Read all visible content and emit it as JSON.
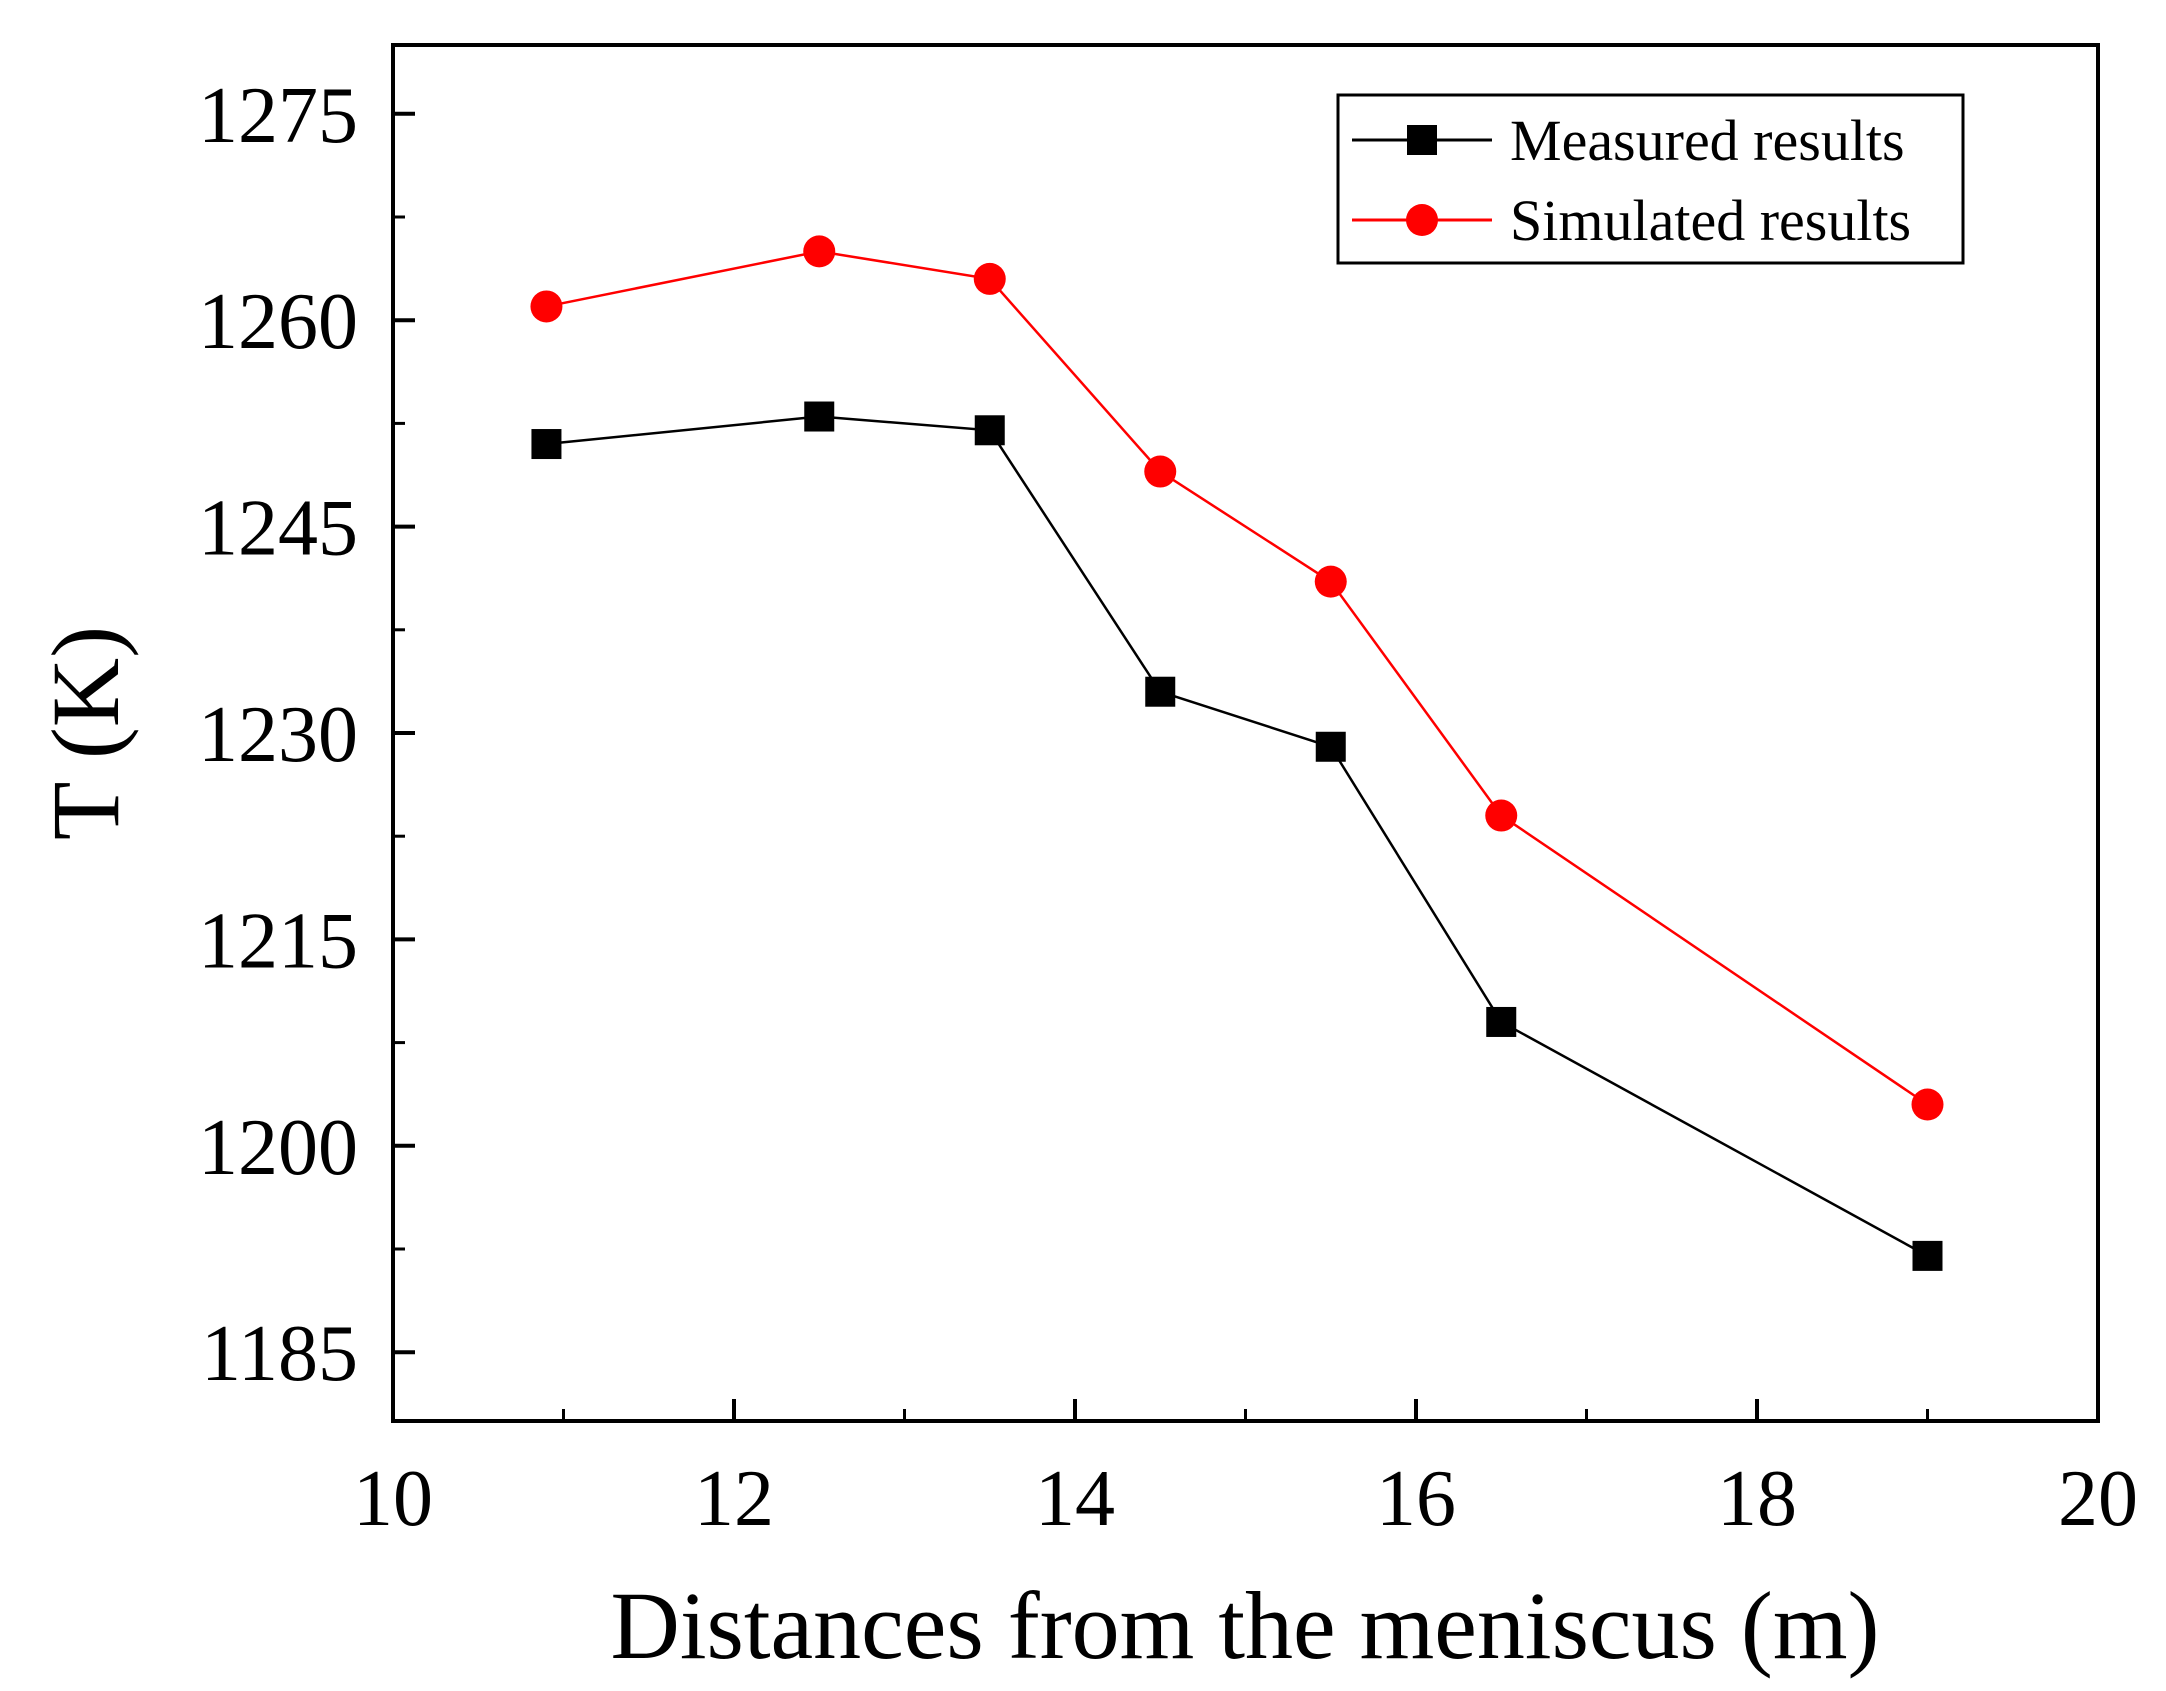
{
  "chart_data": {
    "type": "line",
    "title": "",
    "xlabel": "Distances from the meniscus (m)",
    "ylabel": "T (K)",
    "xlim": [
      10,
      20
    ],
    "ylim": [
      1180,
      1280
    ],
    "xticks": [
      10,
      12,
      14,
      16,
      18,
      20
    ],
    "yticks": [
      1185,
      1200,
      1215,
      1230,
      1245,
      1260,
      1275
    ],
    "grid": false,
    "legend_position": "top-right",
    "series": [
      {
        "name": "Measured results",
        "color": "#000000",
        "marker": "square",
        "x": [
          10.9,
          12.5,
          13.5,
          14.5,
          15.5,
          16.5,
          19.0
        ],
        "y": [
          1251,
          1253,
          1252,
          1233,
          1229,
          1209,
          1192
        ]
      },
      {
        "name": "Simulated results",
        "color": "#ff0000",
        "marker": "circle",
        "x": [
          10.9,
          12.5,
          13.5,
          14.5,
          15.5,
          16.5,
          19.0
        ],
        "y": [
          1261,
          1265,
          1263,
          1249,
          1241,
          1224,
          1203
        ]
      }
    ]
  }
}
